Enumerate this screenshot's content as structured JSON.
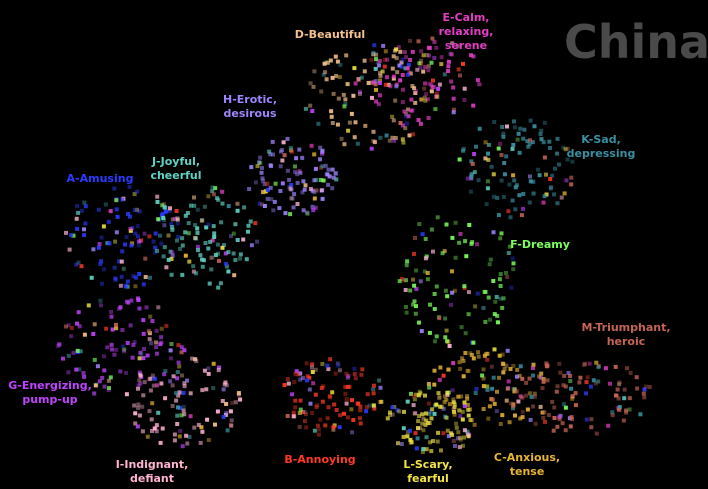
{
  "title": "China",
  "clusters": [
    {
      "lines": [
        "A-Amusing"
      ],
      "color": "#2a3cff"
    },
    {
      "lines": [
        "B-Annoying"
      ],
      "color": "#ff3a24"
    },
    {
      "lines": [
        "C-Anxious,",
        "tense"
      ],
      "color": "#e8b534"
    },
    {
      "lines": [
        "D-Beautiful"
      ],
      "color": "#f4c08c"
    },
    {
      "lines": [
        "E-Calm,",
        "relaxing,",
        "serene"
      ],
      "color": "#e33ec4"
    },
    {
      "lines": [
        "F-Dreamy"
      ],
      "color": "#7cff5c"
    },
    {
      "lines": [
        "G-Energizing,",
        "pump-up"
      ],
      "color": "#c044ff"
    },
    {
      "lines": [
        "H-Erotic,",
        "desirous"
      ],
      "color": "#9f86ff"
    },
    {
      "lines": [
        "I-Indignant,",
        "defiant"
      ],
      "color": "#ffb4d2"
    },
    {
      "lines": [
        "J-Joyful,",
        "cheerful"
      ],
      "color": "#5fd4c4"
    },
    {
      "lines": [
        "K-Sad,",
        "depressing"
      ],
      "color": "#3a90a2"
    },
    {
      "lines": [
        "L-Scary,",
        "fearful"
      ],
      "color": "#f2e444"
    },
    {
      "lines": [
        "M-Triumphant,",
        "heroic"
      ],
      "color": "#c46454"
    }
  ]
}
